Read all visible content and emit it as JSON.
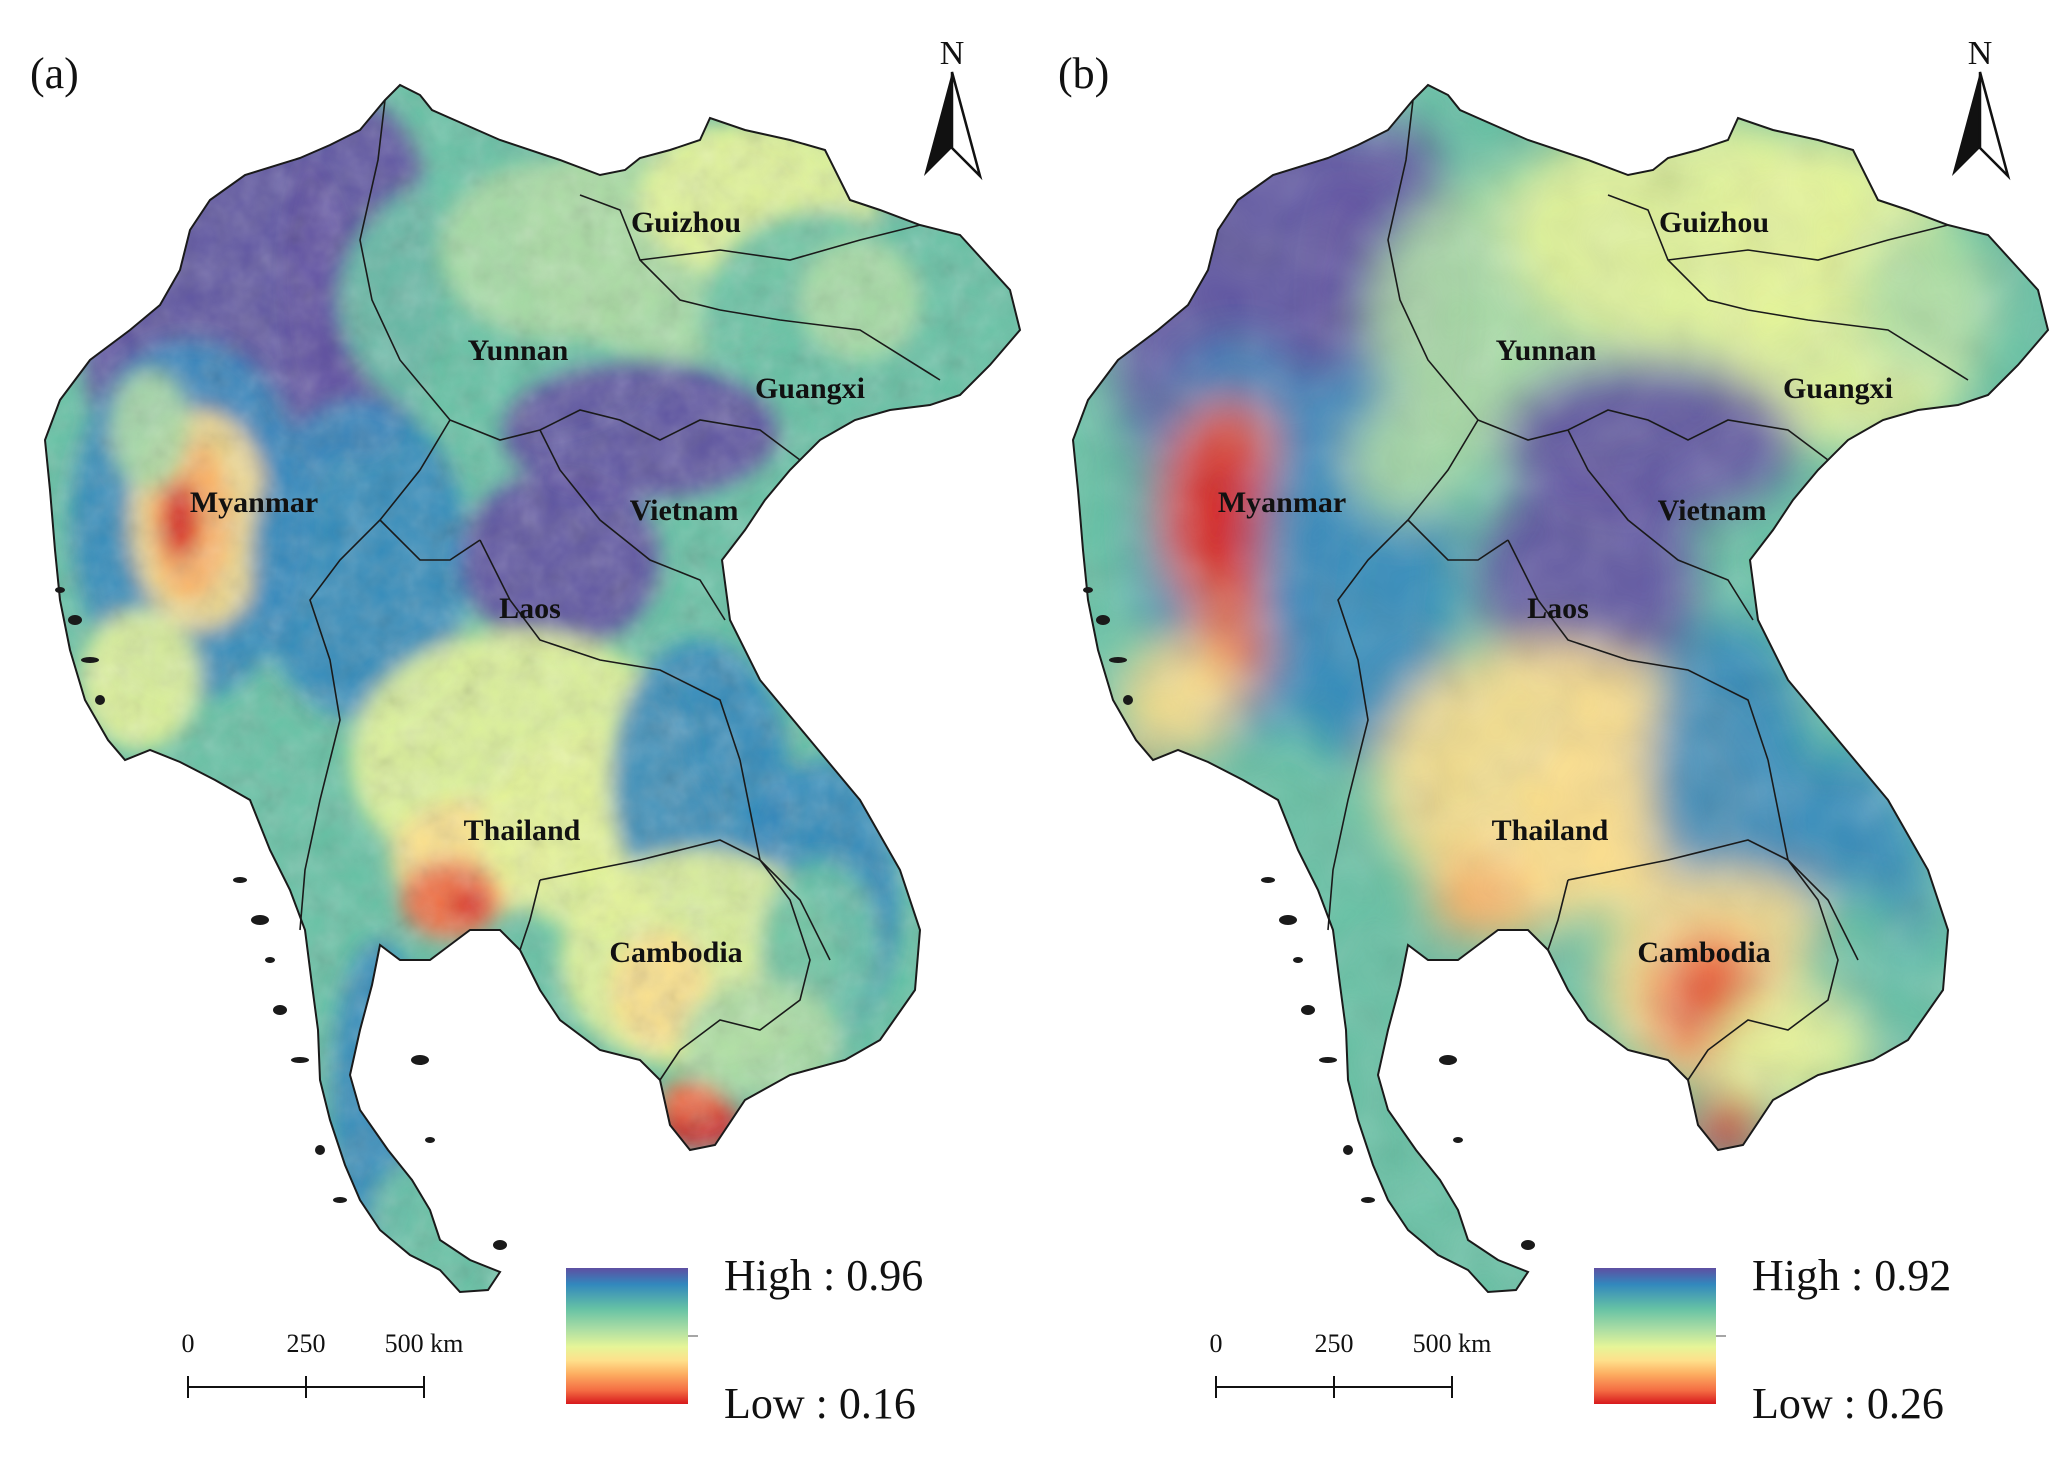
{
  "colors": {
    "ramp": [
      "#d7191c",
      "#f46d43",
      "#fdae61",
      "#fee08b",
      "#e6f598",
      "#abdda4",
      "#66c2a5",
      "#3288bd",
      "#5e4fa2"
    ],
    "border": "#1a1a1a",
    "background": "#ffffff"
  },
  "panels": [
    {
      "label": "(a)",
      "north": "N",
      "legend": {
        "high": "High : 0.96",
        "low": "Low : 0.16"
      },
      "scale": {
        "ticks": [
          "0",
          "250",
          "500 km"
        ]
      },
      "regions": [
        "Guizhou",
        "Yunnan",
        "Guangxi",
        "Myanmar",
        "Vietnam",
        "Laos",
        "Thailand",
        "Cambodia"
      ]
    },
    {
      "label": "(b)",
      "north": "N",
      "legend": {
        "high": "High : 0.92",
        "low": "Low : 0.26"
      },
      "scale": {
        "ticks": [
          "0",
          "250",
          "500 km"
        ]
      },
      "regions": [
        "Guizhou",
        "Yunnan",
        "Guangxi",
        "Myanmar",
        "Vietnam",
        "Laos",
        "Thailand",
        "Cambodia"
      ]
    }
  ]
}
